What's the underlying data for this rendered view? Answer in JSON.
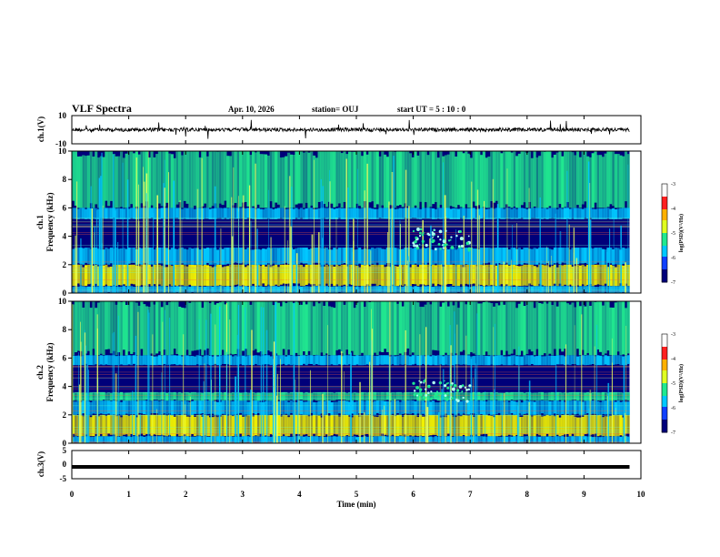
{
  "header": {
    "title": "VLF Spectra",
    "date": "Apr. 10, 2026",
    "station": "station= OUJ",
    "start": "start  UT =   5  : 10 : 0"
  },
  "colors": {
    "bg": "#00007a",
    "band_low": "#00c8ff",
    "band_mid": "#20e890",
    "band_high": "#f0f000",
    "spike": "#e8ff60"
  },
  "chart_data": [
    {
      "type": "line",
      "id": "ch1_waveform",
      "ylabel": "ch.1(V)",
      "ylim": [
        -10,
        10
      ],
      "yticks": [
        "10",
        "-10"
      ],
      "xlim": [
        0,
        10
      ]
    },
    {
      "type": "heatmap",
      "id": "ch1_spectrogram",
      "ylabel": "ch.1",
      "ylabel2": "Frequency (kHz)",
      "ylim": [
        0,
        10
      ],
      "yticks": [
        "0",
        "2",
        "4",
        "6",
        "8",
        "10"
      ],
      "xlim": [
        0,
        10
      ],
      "colorbar": {
        "ticks": [
          "-3",
          "-4",
          "-5",
          "-6",
          "-7"
        ],
        "label": "log(PSD)(V²/Hz)",
        "range": [
          -7,
          -3
        ]
      },
      "bands_khz": [
        {
          "from": 0,
          "to": 0.5,
          "level": "low"
        },
        {
          "from": 0.5,
          "to": 2.0,
          "level": "high"
        },
        {
          "from": 2.0,
          "to": 3.2,
          "level": "low"
        },
        {
          "from": 3.2,
          "to": 5.2,
          "level": "none"
        },
        {
          "from": 5.2,
          "to": 6.0,
          "level": "low"
        },
        {
          "from": 6.0,
          "to": 10.0,
          "level": "mid"
        }
      ],
      "burst_min": [
        6.0,
        7.0
      ]
    },
    {
      "type": "heatmap",
      "id": "ch2_spectrogram",
      "ylabel": "ch.2",
      "ylabel2": "Frequency (kHz)",
      "ylim": [
        0,
        10
      ],
      "yticks": [
        "0",
        "2",
        "4",
        "6",
        "8",
        "10"
      ],
      "xlim": [
        0,
        10
      ],
      "colorbar": {
        "ticks": [
          "-3",
          "-4",
          "-5",
          "-6",
          "-7"
        ],
        "label": "log(PSD)(V²/Hz)",
        "range": [
          -7,
          -3
        ]
      },
      "bands_khz": [
        {
          "from": 0,
          "to": 0.5,
          "level": "low"
        },
        {
          "from": 0.5,
          "to": 2.0,
          "level": "high"
        },
        {
          "from": 2.0,
          "to": 3.0,
          "level": "low"
        },
        {
          "from": 3.0,
          "to": 3.6,
          "level": "mid"
        },
        {
          "from": 3.6,
          "to": 5.5,
          "level": "none"
        },
        {
          "from": 5.5,
          "to": 6.2,
          "level": "low"
        },
        {
          "from": 6.2,
          "to": 10.0,
          "level": "mid"
        }
      ],
      "burst_min": [
        6.0,
        7.0
      ]
    },
    {
      "type": "line",
      "id": "ch3_waveform",
      "ylabel": "ch.3(V)",
      "ylim": [
        -5,
        5
      ],
      "yticks": [
        "5",
        "0",
        "-5"
      ],
      "xlim": [
        0,
        10
      ],
      "level": -0.8
    }
  ],
  "xaxis": {
    "label": "Time  (min)",
    "ticks": [
      "0",
      "1",
      "2",
      "3",
      "4",
      "5",
      "6",
      "7",
      "8",
      "9",
      "10"
    ]
  }
}
